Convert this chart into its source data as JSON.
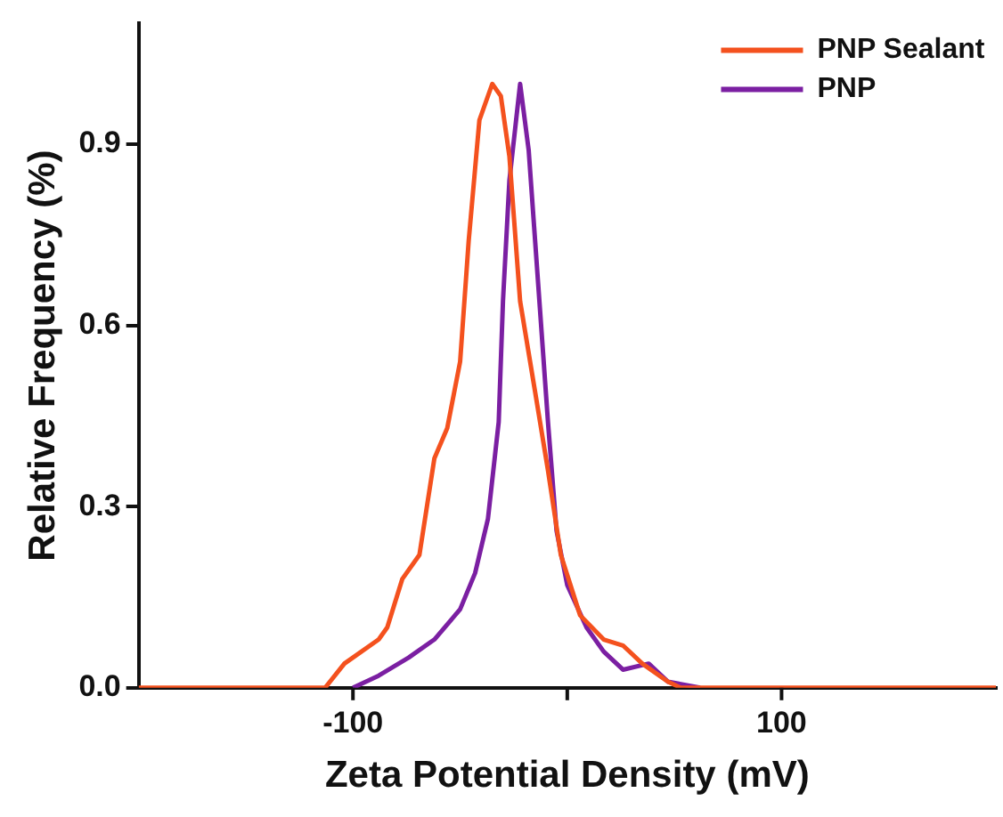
{
  "chart_data": {
    "type": "line",
    "xlabel": "Zeta Potential Density (mV)",
    "ylabel": "Relative Frequency (%)",
    "xlim": [
      -200,
      200
    ],
    "xticks": [
      -100,
      {
        "value": 0,
        "label": null
      },
      100
    ],
    "ylim": [
      0,
      1.1
    ],
    "yticks": [
      {
        "value": 0,
        "label": "0.0"
      },
      0.3,
      0.6,
      0.9
    ],
    "grid": false,
    "legend": "top right",
    "marker": "none",
    "line_style": "solid",
    "series": [
      {
        "name": "PNP Sealant",
        "color": "#f4511e",
        "x": [
          -200,
          -113,
          -104,
          -88,
          -84,
          -77,
          -69,
          -62,
          -56,
          -50,
          -46,
          -41,
          -35,
          -31,
          -27,
          -22,
          -15,
          -9,
          -3,
          6,
          17,
          26,
          35,
          47,
          53,
          200
        ],
        "values": [
          0,
          0,
          0.04,
          0.08,
          0.1,
          0.18,
          0.22,
          0.38,
          0.43,
          0.54,
          0.74,
          0.94,
          1.0,
          0.98,
          0.88,
          0.64,
          0.49,
          0.36,
          0.22,
          0.12,
          0.08,
          0.07,
          0.04,
          0.01,
          0,
          0
        ]
      },
      {
        "name": "PNP",
        "color": "#7b1fa2",
        "x": [
          -100,
          -88,
          -74,
          -62,
          -50,
          -43,
          -37,
          -32,
          -30,
          -27,
          -22,
          -18,
          -13,
          -9,
          -5,
          0,
          9,
          17,
          26,
          38,
          47,
          62
        ],
        "values": [
          0,
          0.02,
          0.05,
          0.08,
          0.13,
          0.19,
          0.28,
          0.44,
          0.64,
          0.84,
          1.0,
          0.89,
          0.64,
          0.44,
          0.26,
          0.17,
          0.1,
          0.06,
          0.03,
          0.04,
          0.01,
          0
        ]
      }
    ]
  }
}
